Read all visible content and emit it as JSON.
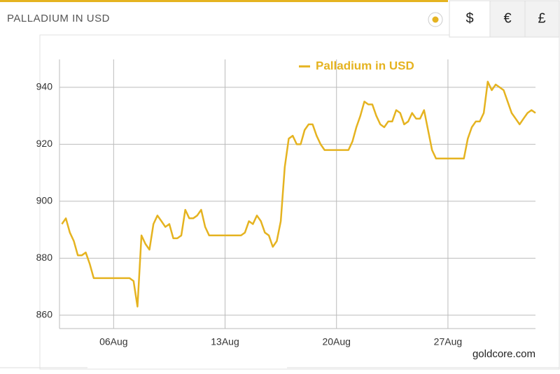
{
  "header": {
    "title": "PALLADIUM IN USD",
    "tabs": [
      "$",
      "€",
      "£"
    ]
  },
  "chart_data": {
    "type": "line",
    "source": "goldcore.com",
    "x": [
      2.75,
      3,
      3.25,
      3.5,
      3.75,
      4,
      4.25,
      4.5,
      4.75,
      5,
      5.25,
      5.5,
      5.75,
      6,
      6.25,
      6.5,
      6.75,
      7,
      7.25,
      7.5,
      7.75,
      8,
      8.25,
      8.5,
      8.75,
      9,
      9.25,
      9.5,
      9.75,
      10,
      10.25,
      10.5,
      10.75,
      11,
      11.25,
      11.5,
      11.75,
      12,
      12.25,
      12.5,
      12.75,
      13,
      13.25,
      13.5,
      13.75,
      14,
      14.25,
      14.5,
      14.75,
      15,
      15.25,
      15.5,
      15.75,
      16,
      16.25,
      16.5,
      16.75,
      17,
      17.25,
      17.5,
      17.75,
      18,
      18.25,
      18.5,
      18.75,
      19,
      19.25,
      19.5,
      19.75,
      20,
      20.25,
      20.5,
      20.75,
      21,
      21.25,
      21.5,
      21.75,
      22,
      22.25,
      22.5,
      22.75,
      23,
      23.25,
      23.5,
      23.75,
      24,
      24.25,
      24.5,
      24.75,
      25,
      25.25,
      25.5,
      25.75,
      26,
      26.25,
      26.5,
      26.75,
      27,
      27.25,
      27.5,
      27.75,
      28,
      28.25,
      28.5,
      28.75,
      29,
      29.25,
      29.5,
      29.75,
      30,
      30.25,
      30.5,
      30.75,
      31,
      31.25,
      31.5,
      31.75,
      32,
      32.25,
      32.5
    ],
    "series": [
      {
        "name": "Palladium in USD",
        "color": "#e5b320",
        "values": [
          892,
          894,
          889,
          886,
          881,
          881,
          882,
          878,
          873,
          873,
          873,
          873,
          873,
          873,
          873,
          873,
          873,
          873,
          872,
          863,
          888,
          885,
          883,
          892,
          895,
          893,
          891,
          892,
          887,
          887,
          888,
          897,
          894,
          894,
          895,
          897,
          891,
          888,
          888,
          888,
          888,
          888,
          888,
          888,
          888,
          888,
          889,
          893,
          892,
          895,
          893,
          889,
          888,
          884,
          886,
          893,
          912,
          922,
          923,
          920,
          920,
          925,
          927,
          927,
          923,
          920,
          918,
          918,
          918,
          918,
          918,
          918,
          918,
          921,
          926,
          930,
          935,
          934,
          934,
          930,
          927,
          926,
          928,
          928,
          932,
          931,
          927,
          928,
          931,
          929,
          929,
          932,
          925,
          918,
          915,
          915,
          915,
          915,
          915,
          915,
          915,
          915,
          922,
          926,
          928,
          928,
          931,
          942,
          939,
          941,
          940,
          939,
          935,
          931,
          929,
          927,
          929,
          931,
          932,
          931
        ]
      }
    ],
    "xlim": [
      2.6,
      32.5
    ],
    "xticks": [
      {
        "value": 6,
        "label": "06Aug"
      },
      {
        "value": 13,
        "label": "13Aug"
      },
      {
        "value": 20,
        "label": "20Aug"
      },
      {
        "value": 27,
        "label": "27Aug"
      }
    ],
    "ylim": [
      855.3,
      949.8
    ],
    "yticks": [
      860,
      880,
      900,
      920,
      940
    ],
    "grid": true
  }
}
